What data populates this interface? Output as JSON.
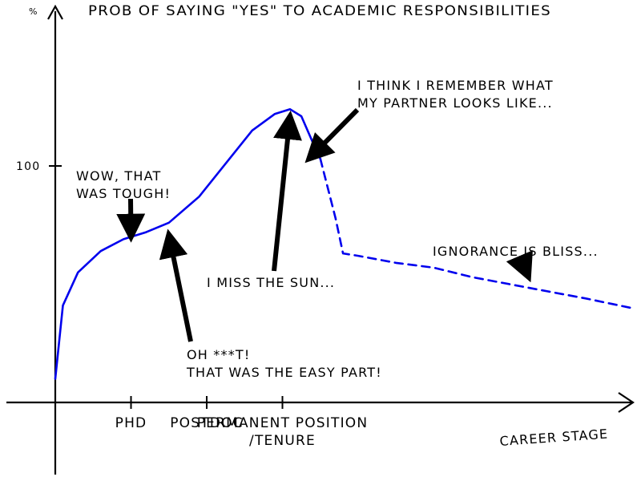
{
  "chart_data": {
    "type": "line",
    "title": "PROB OF SAYING \"YES\" TO ACADEMIC RESPONSIBILITIES",
    "y_unit": "%",
    "xlabel": "CAREER STAGE",
    "ylabel": "",
    "yticks": [
      100
    ],
    "xticks": [
      {
        "x": 1,
        "label": "PHD"
      },
      {
        "x": 2,
        "label": "POSTDOC"
      },
      {
        "x": 3,
        "label": "PERMANENT POSITION\n/TENURE"
      }
    ],
    "xlim": [
      0,
      7.6
    ],
    "ylim": [
      0,
      138
    ],
    "grid": false,
    "legend": "none",
    "line_color": "#0000ee",
    "series": [
      {
        "style": "solid",
        "points": [
          [
            0,
            10
          ],
          [
            0.1,
            41
          ],
          [
            0.3,
            55
          ],
          [
            0.6,
            64
          ],
          [
            0.9,
            69
          ],
          [
            1.2,
            72
          ],
          [
            1.5,
            76
          ],
          [
            1.9,
            87
          ],
          [
            2.3,
            103
          ],
          [
            2.6,
            115
          ],
          [
            2.9,
            122
          ],
          [
            3.1,
            124
          ],
          [
            3.25,
            121
          ],
          [
            3.4,
            110
          ],
          [
            3.5,
            103
          ]
        ]
      },
      {
        "style": "dashed",
        "points": [
          [
            3.5,
            103
          ],
          [
            3.7,
            78
          ],
          [
            3.8,
            63
          ],
          [
            4.0,
            62
          ],
          [
            4.5,
            59
          ],
          [
            5.0,
            57
          ],
          [
            5.5,
            53
          ],
          [
            6.0,
            50
          ],
          [
            6.5,
            47
          ],
          [
            7.0,
            44
          ],
          [
            7.6,
            40
          ]
        ]
      }
    ],
    "annotations": [
      {
        "text": "WOW, THAT\n WAS TOUGH!",
        "arrow_to": [
          1.0,
          70
        ]
      },
      {
        "text": "OH ***T!\n  THAT WAS THE EASY PART!",
        "arrow_to": [
          1.5,
          71
        ]
      },
      {
        "text": "I MISS THE SUN...",
        "arrow_to": [
          3.1,
          121
        ]
      },
      {
        "text": "I THINK I REMEMBER WHAT\n MY PARTNER LOOKS LIKE...",
        "arrow_to": [
          3.35,
          103
        ]
      },
      {
        "text": "IGNORANCE IS BLISS...",
        "arrow_to": [
          6.25,
          53
        ]
      }
    ]
  }
}
